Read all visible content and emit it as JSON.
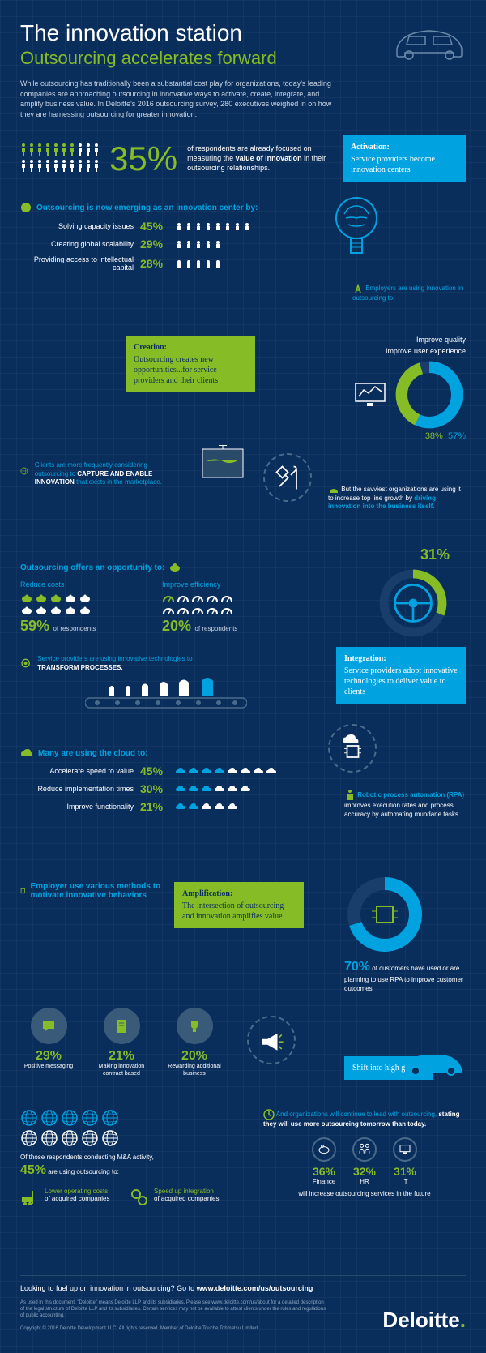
{
  "colors": {
    "bg": "#0a2e5c",
    "green": "#86bc25",
    "blue": "#00a3e0",
    "white": "#ffffff",
    "lightblue": "#4a6a8a"
  },
  "header": {
    "title": "The innovation station",
    "subtitle": "Outsourcing accelerates forward",
    "intro": "While outsourcing has traditionally been a substantial cost play for organizations, today's leading companies are approaching outsourcing in innovative ways to activate, create, integrate, and amplify business value. In Deloitte's 2016 outsourcing survey, 280 executives weighed in on how they are harnessing outsourcing for greater innovation."
  },
  "stat35": {
    "pct": "35%",
    "text_pre": "of respondents are already focused on measuring the ",
    "text_bold": "value of innovation",
    "text_post": " in their outsourcing relationships.",
    "people_green": 7,
    "people_white": 13
  },
  "callouts": {
    "activation": {
      "label": "Activation:",
      "text": "Service providers become innovation centers",
      "type": "blue"
    },
    "creation": {
      "label": "Creation:",
      "text": "Outsourcing creates new opportunities...for service providers and their clients",
      "type": "green"
    },
    "integration": {
      "label": "Integration:",
      "text": "Service providers adopt innovative technologies to deliver value to clients",
      "type": "blue"
    },
    "amplification": {
      "label": "Amplification:",
      "text": "The intersection of outsourcing and innovation amplifies value",
      "type": "green"
    },
    "shift": {
      "label": "",
      "text": "Shift into high gear",
      "type": "blue"
    }
  },
  "emerging": {
    "heading": "Outsourcing is now emerging as an innovation center by:",
    "rows": [
      {
        "label": "Solving capacity issues",
        "pct": "45%",
        "count": 8
      },
      {
        "label": "Creating global scalability",
        "pct": "29%",
        "count": 5
      },
      {
        "label": "Providing access to intellectual capital",
        "pct": "28%",
        "count": 5
      }
    ]
  },
  "employers_innovation": {
    "heading": "Employers are using innovation in outsourcing to:",
    "items": [
      {
        "label": "Improve quality",
        "pct": 38,
        "color": "#86bc25"
      },
      {
        "label": "Improve user experience",
        "pct": 57,
        "color": "#00a3e0"
      }
    ]
  },
  "capture": {
    "text_pre": "Clients are more frequently considering outsourcing to ",
    "text_bold": "CAPTURE AND ENABLE INNOVATION",
    "text_post": " that exists in the marketplace."
  },
  "savviest": {
    "text": "But the savviest organizations are using it to increase top line growth by ",
    "bold": "driving innovation into the business itself.",
    "pct": "31%"
  },
  "opportunity": {
    "heading": "Outsourcing offers an opportunity to:",
    "cols": [
      {
        "title": "Reduce costs",
        "pct": "59%",
        "sub": "of respondents",
        "icon": "piggy",
        "rows": 2,
        "cols": 5
      },
      {
        "title": "Improve efficiency",
        "pct": "20%",
        "sub": "of respondents",
        "icon": "gauge",
        "rows": 2,
        "cols": 5
      }
    ]
  },
  "transform": {
    "text_pre": "Service providers are using innovative technologies to ",
    "text_bold": "TRANSFORM PROCESSES."
  },
  "cloud": {
    "heading": "Many are using the cloud to:",
    "rows": [
      {
        "label": "Accelerate speed to value",
        "pct": "45%",
        "count": 8
      },
      {
        "label": "Reduce implementation times",
        "pct": "30%",
        "count": 6
      },
      {
        "label": "Improve functionality",
        "pct": "21%",
        "count": 5
      }
    ]
  },
  "rpa": {
    "heading": "Robotic process automation (RPA)",
    "text": "improves execution rates and process accuracy by automating mundane tasks",
    "pct": "70%",
    "sub": "of customers have used or are planning to use RPA to improve customer outcomes"
  },
  "motivate": {
    "heading": "Employer use various methods to motivate innovative behaviors",
    "items": [
      {
        "pct": "29%",
        "label": "Positive messaging",
        "icon": "chat"
      },
      {
        "pct": "21%",
        "label": "Making innovation contract based",
        "icon": "contract"
      },
      {
        "pct": "20%",
        "label": "Rewarding additional business",
        "icon": "trophy"
      }
    ]
  },
  "ma": {
    "globe_count": 10,
    "text_pre": "Of those respondents conducting M&A activity,",
    "pct": "45%",
    "text_post": "are using outsourcing to:",
    "items": [
      {
        "title": "Lower operating costs",
        "sub": "of acquired companies",
        "icon": "forklift"
      },
      {
        "title": "Speed up integration",
        "sub": "of acquired companies",
        "icon": "gears"
      }
    ]
  },
  "future": {
    "heading": "And organizations will continue to lead with outsourcing, ",
    "bold": "stating they will use more outsourcing tomorrow than today.",
    "items": [
      {
        "pct": "36%",
        "label": "Finance",
        "icon": "piggy"
      },
      {
        "pct": "32%",
        "label": "HR",
        "icon": "people"
      },
      {
        "pct": "31%",
        "label": "IT",
        "icon": "monitor"
      }
    ],
    "sub": "will increase outsourcing services in the future"
  },
  "footer": {
    "cta": "Looking to fuel up on innovation in outsourcing? Go to ",
    "url": "www.deloitte.com/us/outsourcing",
    "legal1": "As used in this document, \"Deloitte\" means Deloitte LLP and its subsidiaries. Please see www.deloitte.com/us/about for a detailed description of the legal structure of Deloitte LLP and its subsidiaries. Certain services may not be available to attest clients under the rules and regulations of public accounting.",
    "legal2": "Copyright © 2016 Deloitte Development LLC. All rights reserved. Member of Deloitte Touche Tohmatsu Limited",
    "brand": "Deloitte"
  }
}
